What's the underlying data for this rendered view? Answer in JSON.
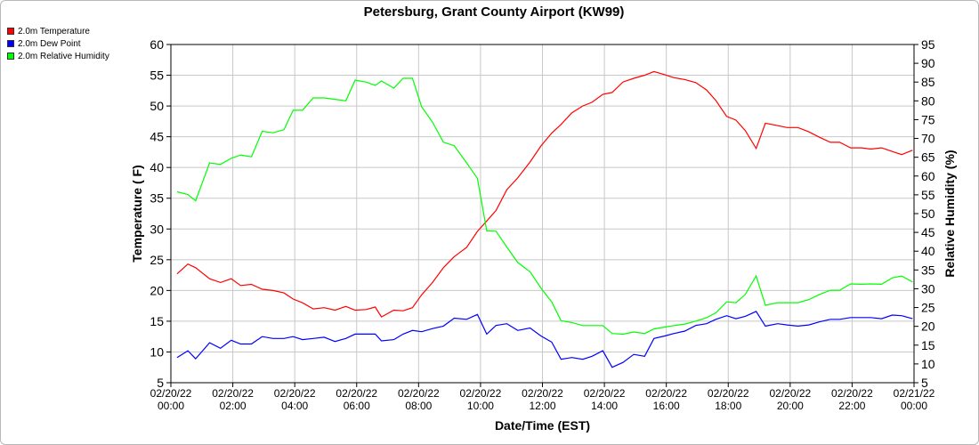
{
  "chart_data": {
    "type": "line",
    "title": "Petersburg, Grant County Airport (KW99)",
    "xlabel": "Date/Time (EST)",
    "ylabel": "Temperature ( F)",
    "y2label": "Relative Humidity (%)",
    "xlim": [
      "02/20/22 00:00",
      "02/21/22 00:00"
    ],
    "ylim": [
      5,
      60
    ],
    "y2lim": [
      5,
      95
    ],
    "y_ticks": [
      5,
      10,
      15,
      20,
      25,
      30,
      35,
      40,
      45,
      50,
      55,
      60
    ],
    "y2_ticks": [
      5,
      10,
      15,
      20,
      25,
      30,
      35,
      40,
      45,
      50,
      55,
      60,
      65,
      70,
      75,
      80,
      85,
      90,
      95
    ],
    "x_tick_labels": [
      {
        "t": 0,
        "date": "02/20/22",
        "time": "00:00"
      },
      {
        "t": 2,
        "date": "02/20/22",
        "time": "02:00"
      },
      {
        "t": 4,
        "date": "02/20/22",
        "time": "04:00"
      },
      {
        "t": 6,
        "date": "02/20/22",
        "time": "06:00"
      },
      {
        "t": 8,
        "date": "02/20/22",
        "time": "08:00"
      },
      {
        "t": 10,
        "date": "02/20/22",
        "time": "10:00"
      },
      {
        "t": 12,
        "date": "02/20/22",
        "time": "12:00"
      },
      {
        "t": 14,
        "date": "02/20/22",
        "time": "14:00"
      },
      {
        "t": 16,
        "date": "02/20/22",
        "time": "16:00"
      },
      {
        "t": 18,
        "date": "02/20/22",
        "time": "18:00"
      },
      {
        "t": 20,
        "date": "02/20/22",
        "time": "20:00"
      },
      {
        "t": 22,
        "date": "02/20/22",
        "time": "22:00"
      },
      {
        "t": 24,
        "date": "02/21/22",
        "time": "00:00"
      }
    ],
    "grid": true,
    "legend_position": "top-left",
    "series": [
      {
        "name": "2.0m Temperature",
        "color": "#ff0000",
        "axis": "left",
        "points": [
          [
            0.2,
            22.7
          ],
          [
            0.55,
            24.3
          ],
          [
            0.8,
            23.7
          ],
          [
            1.25,
            21.9
          ],
          [
            1.6,
            21.3
          ],
          [
            1.95,
            21.9
          ],
          [
            2.25,
            20.8
          ],
          [
            2.6,
            21.0
          ],
          [
            2.95,
            20.2
          ],
          [
            3.3,
            20.0
          ],
          [
            3.65,
            19.6
          ],
          [
            3.95,
            18.6
          ],
          [
            4.25,
            18.0
          ],
          [
            4.6,
            17.0
          ],
          [
            4.95,
            17.2
          ],
          [
            5.3,
            16.8
          ],
          [
            5.65,
            17.4
          ],
          [
            5.95,
            16.8
          ],
          [
            6.3,
            16.9
          ],
          [
            6.6,
            17.3
          ],
          [
            6.8,
            15.7
          ],
          [
            7.2,
            16.8
          ],
          [
            7.5,
            16.7
          ],
          [
            7.8,
            17.2
          ],
          [
            8.1,
            19.3
          ],
          [
            8.45,
            21.3
          ],
          [
            8.8,
            23.7
          ],
          [
            9.15,
            25.5
          ],
          [
            9.55,
            27.0
          ],
          [
            9.9,
            29.6
          ],
          [
            10.2,
            31.3
          ],
          [
            10.5,
            33.0
          ],
          [
            10.85,
            36.4
          ],
          [
            11.2,
            38.3
          ],
          [
            11.6,
            40.9
          ],
          [
            11.95,
            43.5
          ],
          [
            12.3,
            45.6
          ],
          [
            12.6,
            47.0
          ],
          [
            12.95,
            48.9
          ],
          [
            13.3,
            50.0
          ],
          [
            13.6,
            50.6
          ],
          [
            13.95,
            51.9
          ],
          [
            14.25,
            52.2
          ],
          [
            14.6,
            53.9
          ],
          [
            14.95,
            54.5
          ],
          [
            15.3,
            55.0
          ],
          [
            15.6,
            55.6
          ],
          [
            15.95,
            55.1
          ],
          [
            16.25,
            54.6
          ],
          [
            16.6,
            54.3
          ],
          [
            16.95,
            53.8
          ],
          [
            17.3,
            52.6
          ],
          [
            17.6,
            50.9
          ],
          [
            17.95,
            48.3
          ],
          [
            18.25,
            47.7
          ],
          [
            18.55,
            46.0
          ],
          [
            18.9,
            43.1
          ],
          [
            19.2,
            47.2
          ],
          [
            19.6,
            46.8
          ],
          [
            19.9,
            46.5
          ],
          [
            20.25,
            46.5
          ],
          [
            20.6,
            45.8
          ],
          [
            20.95,
            44.9
          ],
          [
            21.3,
            44.1
          ],
          [
            21.6,
            44.1
          ],
          [
            21.95,
            43.2
          ],
          [
            22.3,
            43.2
          ],
          [
            22.6,
            43.0
          ],
          [
            22.95,
            43.2
          ],
          [
            23.3,
            42.6
          ],
          [
            23.6,
            42.1
          ],
          [
            23.95,
            42.8
          ]
        ]
      },
      {
        "name": "2.0m Dew Point",
        "color": "#0000ff",
        "axis": "left",
        "points": [
          [
            0.2,
            9.1
          ],
          [
            0.55,
            10.2
          ],
          [
            0.8,
            8.9
          ],
          [
            1.25,
            11.5
          ],
          [
            1.6,
            10.6
          ],
          [
            1.95,
            11.9
          ],
          [
            2.25,
            11.3
          ],
          [
            2.6,
            11.3
          ],
          [
            2.95,
            12.5
          ],
          [
            3.3,
            12.2
          ],
          [
            3.65,
            12.2
          ],
          [
            3.95,
            12.5
          ],
          [
            4.25,
            12.0
          ],
          [
            4.6,
            12.2
          ],
          [
            4.95,
            12.4
          ],
          [
            5.3,
            11.7
          ],
          [
            5.65,
            12.2
          ],
          [
            5.95,
            12.9
          ],
          [
            6.3,
            12.9
          ],
          [
            6.6,
            12.9
          ],
          [
            6.8,
            11.8
          ],
          [
            7.2,
            12.0
          ],
          [
            7.5,
            12.9
          ],
          [
            7.8,
            13.5
          ],
          [
            8.1,
            13.3
          ],
          [
            8.45,
            13.8
          ],
          [
            8.8,
            14.2
          ],
          [
            9.15,
            15.5
          ],
          [
            9.55,
            15.3
          ],
          [
            9.9,
            16.1
          ],
          [
            10.2,
            12.9
          ],
          [
            10.5,
            14.3
          ],
          [
            10.85,
            14.6
          ],
          [
            11.2,
            13.5
          ],
          [
            11.6,
            13.9
          ],
          [
            11.95,
            12.6
          ],
          [
            12.3,
            11.6
          ],
          [
            12.6,
            8.8
          ],
          [
            12.95,
            9.1
          ],
          [
            13.3,
            8.8
          ],
          [
            13.6,
            9.3
          ],
          [
            13.95,
            10.2
          ],
          [
            14.25,
            7.5
          ],
          [
            14.6,
            8.3
          ],
          [
            14.95,
            9.6
          ],
          [
            15.3,
            9.3
          ],
          [
            15.6,
            12.2
          ],
          [
            15.95,
            12.6
          ],
          [
            16.25,
            13.0
          ],
          [
            16.6,
            13.4
          ],
          [
            16.95,
            14.3
          ],
          [
            17.3,
            14.6
          ],
          [
            17.6,
            15.3
          ],
          [
            17.95,
            15.9
          ],
          [
            18.25,
            15.4
          ],
          [
            18.55,
            15.8
          ],
          [
            18.9,
            16.6
          ],
          [
            19.2,
            14.2
          ],
          [
            19.6,
            14.6
          ],
          [
            19.9,
            14.4
          ],
          [
            20.25,
            14.2
          ],
          [
            20.6,
            14.4
          ],
          [
            20.95,
            14.9
          ],
          [
            21.3,
            15.3
          ],
          [
            21.6,
            15.3
          ],
          [
            21.95,
            15.6
          ],
          [
            22.3,
            15.6
          ],
          [
            22.6,
            15.6
          ],
          [
            22.95,
            15.4
          ],
          [
            23.3,
            16.0
          ],
          [
            23.6,
            15.9
          ],
          [
            23.95,
            15.4
          ]
        ]
      },
      {
        "name": "2.0m Relative Humidity",
        "color": "#00ff00",
        "axis": "right",
        "points": [
          [
            0.2,
            55.8
          ],
          [
            0.55,
            55.1
          ],
          [
            0.8,
            53.4
          ],
          [
            1.25,
            63.5
          ],
          [
            1.6,
            63.1
          ],
          [
            1.95,
            64.7
          ],
          [
            2.25,
            65.6
          ],
          [
            2.6,
            65.1
          ],
          [
            2.95,
            71.9
          ],
          [
            3.3,
            71.5
          ],
          [
            3.65,
            72.3
          ],
          [
            3.95,
            77.5
          ],
          [
            4.25,
            77.5
          ],
          [
            4.6,
            80.8
          ],
          [
            4.95,
            80.8
          ],
          [
            5.3,
            80.4
          ],
          [
            5.65,
            80.0
          ],
          [
            5.95,
            85.5
          ],
          [
            6.3,
            85.0
          ],
          [
            6.6,
            84.1
          ],
          [
            6.8,
            85.3
          ],
          [
            7.2,
            83.4
          ],
          [
            7.5,
            86.0
          ],
          [
            7.8,
            86.0
          ],
          [
            8.1,
            78.4
          ],
          [
            8.45,
            74.3
          ],
          [
            8.8,
            69.0
          ],
          [
            9.15,
            68.1
          ],
          [
            9.55,
            63.5
          ],
          [
            9.9,
            59.4
          ],
          [
            10.2,
            45.4
          ],
          [
            10.5,
            45.3
          ],
          [
            10.85,
            41.1
          ],
          [
            11.2,
            37.0
          ],
          [
            11.6,
            34.5
          ],
          [
            11.95,
            30.2
          ],
          [
            12.3,
            26.5
          ],
          [
            12.6,
            21.5
          ],
          [
            12.95,
            21.0
          ],
          [
            13.3,
            20.2
          ],
          [
            13.6,
            20.2
          ],
          [
            13.95,
            20.2
          ],
          [
            14.25,
            18.1
          ],
          [
            14.6,
            17.9
          ],
          [
            14.95,
            18.5
          ],
          [
            15.3,
            18.1
          ],
          [
            15.6,
            19.3
          ],
          [
            15.95,
            19.8
          ],
          [
            16.25,
            20.2
          ],
          [
            16.6,
            20.6
          ],
          [
            16.95,
            21.4
          ],
          [
            17.3,
            22.3
          ],
          [
            17.6,
            23.6
          ],
          [
            17.95,
            26.5
          ],
          [
            18.25,
            26.3
          ],
          [
            18.55,
            28.5
          ],
          [
            18.9,
            33.4
          ],
          [
            19.2,
            25.6
          ],
          [
            19.6,
            26.3
          ],
          [
            19.9,
            26.3
          ],
          [
            20.25,
            26.3
          ],
          [
            20.6,
            27.1
          ],
          [
            20.95,
            28.5
          ],
          [
            21.3,
            29.6
          ],
          [
            21.6,
            29.6
          ],
          [
            21.95,
            31.3
          ],
          [
            22.3,
            31.2
          ],
          [
            22.6,
            31.3
          ],
          [
            22.95,
            31.2
          ],
          [
            23.3,
            32.9
          ],
          [
            23.6,
            33.4
          ],
          [
            23.95,
            31.8
          ]
        ]
      }
    ]
  }
}
